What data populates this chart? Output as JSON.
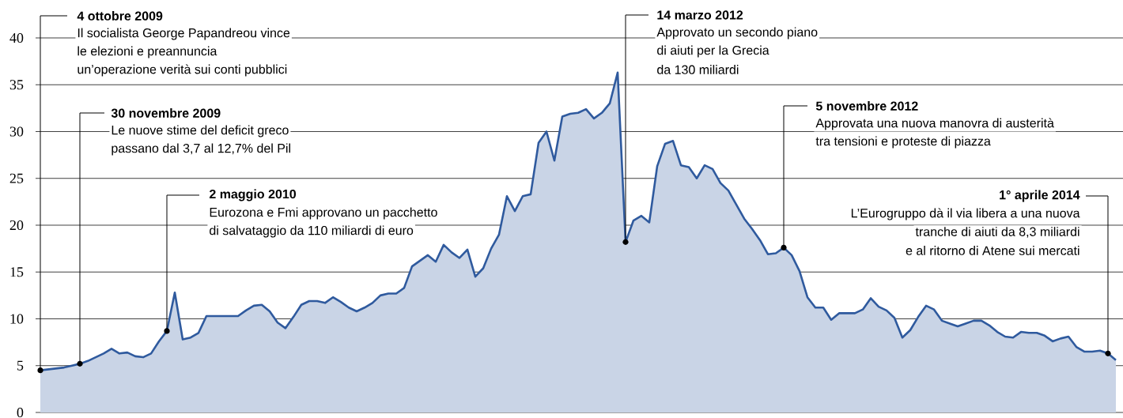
{
  "chart_data": {
    "type": "area",
    "color": "#2f5a9e",
    "categories": [
      null,
      null,
      null,
      null,
      null,
      null,
      null,
      null,
      null,
      null,
      null,
      null,
      null,
      null,
      null,
      null,
      null,
      null,
      null,
      null,
      null,
      null,
      null,
      null,
      null,
      null,
      null,
      null,
      null,
      null,
      null,
      null,
      null,
      null,
      null,
      null,
      null,
      null,
      null,
      null,
      null,
      null,
      null,
      null,
      null,
      null,
      null,
      null,
      null,
      null,
      null,
      null,
      null,
      null,
      null,
      null,
      null,
      null,
      null,
      null,
      null,
      null,
      null,
      null,
      null,
      null,
      null,
      null,
      null,
      null,
      null,
      null,
      null,
      null,
      null,
      null,
      null,
      null,
      null,
      null,
      null,
      null,
      null,
      null,
      null,
      null,
      null,
      null,
      null,
      null,
      null,
      null,
      null,
      null,
      null,
      null,
      null,
      null,
      null,
      null,
      null,
      null,
      null,
      null,
      null,
      null,
      null,
      null,
      null,
      null,
      null,
      null,
      null,
      null,
      null,
      null,
      null,
      null,
      null,
      null,
      null,
      null,
      null,
      null,
      null,
      null,
      null,
      null,
      null,
      null,
      null,
      null,
      null,
      null,
      null,
      null,
      null
    ],
    "values": [
      4.5,
      4.6,
      4.7,
      4.8,
      5.0,
      5.2,
      5.5,
      5.9,
      6.3,
      6.8,
      6.3,
      6.4,
      6.0,
      5.9,
      6.3,
      7.6,
      8.7,
      12.8,
      7.8,
      8.0,
      8.5,
      10.3,
      10.3,
      10.3,
      10.3,
      10.3,
      10.9,
      11.4,
      11.5,
      10.8,
      9.6,
      9.0,
      10.2,
      11.5,
      11.9,
      11.9,
      11.7,
      12.3,
      11.8,
      11.2,
      10.8,
      11.2,
      11.7,
      12.5,
      12.7,
      12.7,
      13.3,
      15.6,
      16.2,
      16.8,
      16.1,
      17.9,
      17.1,
      16.5,
      17.4,
      14.5,
      15.4,
      17.5,
      19.0,
      23.1,
      21.5,
      23.1,
      23.3,
      28.8,
      30,
      26.9,
      31.6,
      31.9,
      32.0,
      32.4,
      31.4,
      32.0,
      33.0,
      36.3,
      18.2,
      20.5,
      21.0,
      20.3,
      26.3,
      28.7,
      29.0,
      26.4,
      26.2,
      25.0,
      26.4,
      26.0,
      24.5,
      23.7,
      22.2,
      20.7,
      19.6,
      18.4,
      16.9,
      17.0,
      17.6,
      16.8,
      15.1,
      12.3,
      11.2,
      11.2,
      9.9,
      10.6,
      10.6,
      10.6,
      11.0,
      12.2,
      11.3,
      10.9,
      10.1,
      8.0,
      8.8,
      10.2,
      11.4,
      11.0,
      9.8,
      9.5,
      9.2,
      9.5,
      9.8,
      9.8,
      9.3,
      8.6,
      8.1,
      8.0,
      8.6,
      8.5,
      8.5,
      8.2,
      7.6,
      7.9,
      8.1,
      7.0,
      6.5,
      6.5,
      6.6,
      6.3,
      5.6
    ],
    "ylim": [
      0,
      40
    ],
    "yticks": [
      0,
      5,
      10,
      15,
      20,
      25,
      30,
      35,
      40
    ],
    "grid": "y",
    "tick_labels": "y",
    "annotations": [
      "4 ottobre 2009",
      "Il socialista George Papandreou vince",
      "le elezioni e preannuncia",
      "un’operazione verità sui conti pubblici",
      "30 novembre 2009",
      "Le nuove stime del deficit greco",
      "passano dal 3,7 al 12,7% del Pil",
      "2 maggio 2010",
      "Eurozona e Fmi approvano un pacchetto",
      "di salvataggio da 110 miliardi di euro",
      "14 marzo 2012",
      "Approvato un secondo piano",
      "di aiuti per la Grecia",
      "da 130 miliardi",
      "5 novembre 2012",
      "Approvata una nuova manovra di austerità",
      "tra tensioni e proteste di piazza",
      "1° aprile 2014",
      "L’Eurogruppo dà il via libera a una nuova",
      "tranche di aiuti da 8,3 miliardi",
      "e al ritorno di Atene sui mercati"
    ]
  }
}
